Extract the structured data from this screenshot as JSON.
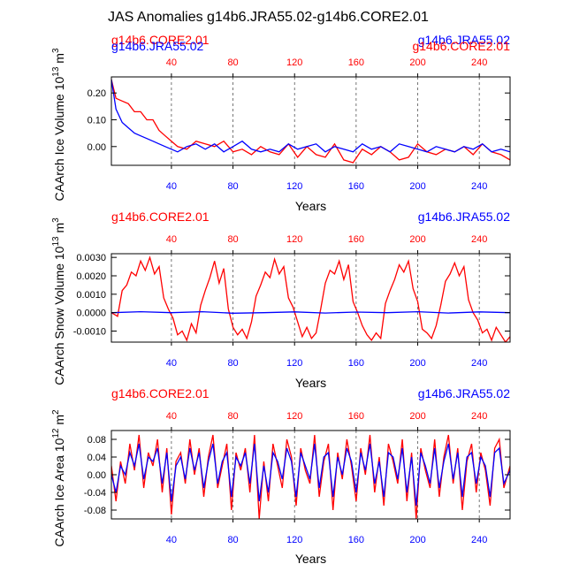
{
  "title": "JAS Anomalies g14b6.JRA55.02-g14b6.CORE2.01",
  "colors": {
    "core": "#ff0000",
    "jra": "#0000ff",
    "axis": "#000000",
    "grid": "#555555",
    "bg": "#ffffff"
  },
  "chart_data": [
    {
      "id": "ice-volume",
      "type": "line",
      "xlabel": "Years",
      "ylabel": "CAArch Ice Volume 10^13 m^3",
      "ylabel_parts": {
        "base": "CAArch Ice Volume 10",
        "exp1": "13",
        "mid": " m",
        "exp2": "3"
      },
      "left_label": "g14b6.CORE2.01",
      "right_label": "g14b6.JRA55.02",
      "overlap_left_label": "g14b6.JRA55.02",
      "overlap_right_label": "g14b6.CORE2.01",
      "xlim": [
        1,
        260
      ],
      "ylim": [
        -0.07,
        0.26
      ],
      "yticks": [
        0.2,
        0.1,
        0.0
      ],
      "ytick_labels": [
        "0.20",
        "0.10",
        "0.00"
      ],
      "xticks": [
        40,
        80,
        120,
        160,
        200,
        240
      ],
      "xtick_labels": [
        "40",
        "80",
        "120",
        "160",
        "200",
        "240"
      ],
      "grid": "dashed vertical at x ticks",
      "series": [
        {
          "name": "g14b6.CORE2.01",
          "color": "#ff0000",
          "x": [
            1,
            4,
            8,
            12,
            16,
            20,
            24,
            28,
            32,
            36,
            40,
            44,
            50,
            56,
            62,
            68,
            74,
            80,
            86,
            92,
            98,
            104,
            110,
            116,
            122,
            128,
            134,
            140,
            146,
            152,
            158,
            164,
            170,
            176,
            182,
            188,
            194,
            200,
            206,
            212,
            218,
            224,
            230,
            236,
            242,
            248,
            254,
            260
          ],
          "y": [
            0.25,
            0.18,
            0.17,
            0.16,
            0.13,
            0.13,
            0.1,
            0.1,
            0.06,
            0.04,
            0.02,
            0.0,
            -0.01,
            0.02,
            0.01,
            0.0,
            0.02,
            -0.02,
            -0.01,
            -0.03,
            0.0,
            -0.02,
            -0.03,
            0.01,
            -0.04,
            0.0,
            -0.03,
            -0.04,
            0.01,
            -0.05,
            -0.06,
            -0.01,
            -0.03,
            0.0,
            -0.02,
            -0.05,
            -0.04,
            0.01,
            -0.02,
            -0.03,
            -0.01,
            -0.02,
            0.0,
            -0.03,
            0.01,
            -0.02,
            -0.03,
            -0.05
          ]
        },
        {
          "name": "g14b6.JRA55.02",
          "color": "#0000ff",
          "x": [
            1,
            4,
            8,
            12,
            16,
            20,
            24,
            28,
            32,
            36,
            40,
            44,
            50,
            56,
            62,
            68,
            74,
            80,
            86,
            92,
            98,
            104,
            110,
            116,
            122,
            128,
            134,
            140,
            146,
            152,
            158,
            164,
            170,
            176,
            182,
            188,
            194,
            200,
            206,
            212,
            218,
            224,
            230,
            236,
            242,
            248,
            254,
            260
          ],
          "y": [
            0.25,
            0.14,
            0.09,
            0.07,
            0.05,
            0.04,
            0.03,
            0.02,
            0.01,
            0.0,
            -0.01,
            -0.02,
            0.0,
            0.01,
            -0.01,
            0.01,
            -0.02,
            0.0,
            0.02,
            -0.01,
            -0.02,
            -0.01,
            -0.02,
            0.01,
            -0.01,
            0.0,
            0.01,
            -0.02,
            0.0,
            -0.01,
            -0.02,
            0.01,
            -0.01,
            0.0,
            -0.02,
            0.01,
            0.0,
            -0.01,
            -0.02,
            0.0,
            -0.01,
            -0.02,
            0.0,
            -0.01,
            0.01,
            -0.02,
            -0.01,
            -0.02
          ]
        }
      ]
    },
    {
      "id": "snow-volume",
      "type": "line",
      "xlabel": "Years",
      "ylabel": "CAArch Snow Volume 10^13 m^3",
      "ylabel_parts": {
        "base": "CAArch Snow Volume 10",
        "exp1": "13",
        "mid": " m",
        "exp2": "3"
      },
      "left_label": "g14b6.CORE2.01",
      "right_label": "g14b6.JRA55.02",
      "xlim": [
        1,
        260
      ],
      "ylim": [
        -0.0016,
        0.0032
      ],
      "yticks": [
        0.003,
        0.002,
        0.001,
        0.0,
        -0.001
      ],
      "ytick_labels": [
        "0.0030",
        "0.0020",
        "0.0010",
        "0.0000",
        "-0.0010"
      ],
      "xticks": [
        40,
        80,
        120,
        160,
        200,
        240
      ],
      "xtick_labels": [
        "40",
        "80",
        "120",
        "160",
        "200",
        "240"
      ],
      "grid": "dashed vertical at x ticks",
      "series": [
        {
          "name": "g14b6.CORE2.01",
          "color": "#ff0000",
          "x": [
            1,
            5,
            8,
            11,
            14,
            17,
            20,
            23,
            26,
            29,
            32,
            35,
            38,
            41,
            44,
            47,
            50,
            53,
            56,
            59,
            62,
            65,
            68,
            71,
            74,
            77,
            80,
            83,
            86,
            89,
            92,
            95,
            98,
            101,
            104,
            107,
            110,
            113,
            116,
            119,
            122,
            125,
            128,
            131,
            134,
            137,
            140,
            143,
            146,
            149,
            152,
            155,
            158,
            161,
            164,
            167,
            170,
            173,
            176,
            179,
            182,
            185,
            188,
            191,
            194,
            197,
            200,
            203,
            206,
            209,
            212,
            215,
            218,
            221,
            224,
            227,
            230,
            233,
            236,
            239,
            242,
            245,
            248,
            251,
            254,
            257,
            260
          ],
          "y": [
            0.0,
            -0.0002,
            0.0012,
            0.0015,
            0.0022,
            0.002,
            0.0028,
            0.0023,
            0.003,
            0.0021,
            0.0025,
            0.0008,
            0.0002,
            -0.0003,
            -0.0012,
            -0.001,
            -0.0015,
            -0.0006,
            -0.0011,
            0.0004,
            0.0012,
            0.0019,
            0.0028,
            0.0016,
            0.0024,
            0.0002,
            -0.0008,
            -0.0012,
            -0.0009,
            -0.0014,
            -0.0005,
            0.0009,
            0.0015,
            0.0022,
            0.0019,
            0.0029,
            0.0021,
            0.0025,
            0.0008,
            0.0003,
            -0.0005,
            -0.0013,
            -0.0008,
            -0.0014,
            -0.0011,
            0.0002,
            0.0016,
            0.0023,
            0.0021,
            0.0028,
            0.0018,
            0.0026,
            0.0006,
            0.0,
            -0.0007,
            -0.0012,
            -0.0015,
            -0.0011,
            -0.0014,
            0.0005,
            0.0012,
            0.0018,
            0.0026,
            0.0022,
            0.0028,
            0.0013,
            0.0006,
            -0.0009,
            -0.0011,
            -0.0014,
            -0.0007,
            0.0004,
            0.0017,
            0.0021,
            0.0027,
            0.002,
            0.0025,
            0.0007,
            0.0,
            -0.0004,
            -0.0011,
            -0.0009,
            -0.0015,
            -0.0008,
            -0.0012,
            -0.0016,
            -0.0013
          ]
        },
        {
          "name": "g14b6.JRA55.02",
          "color": "#0000ff",
          "x": [
            1,
            20,
            40,
            60,
            80,
            100,
            120,
            140,
            160,
            180,
            200,
            220,
            240,
            260
          ],
          "y": [
            0.0,
            5e-05,
            0.0,
            5e-05,
            -3e-05,
            0.0,
            4e-05,
            -2e-05,
            3e-05,
            0.0,
            5e-05,
            -2e-05,
            4e-05,
            0.0
          ]
        }
      ]
    },
    {
      "id": "ice-area",
      "type": "line",
      "xlabel": "Years",
      "ylabel": "CAArch Ice Area 10^12 m^2",
      "ylabel_parts": {
        "base": "CAArch Ice Area 10",
        "exp1": "12",
        "mid": " m",
        "exp2": "2"
      },
      "left_label": "g14b6.CORE2.01",
      "right_label": "g14b6.JRA55.02",
      "xlim": [
        1,
        260
      ],
      "ylim": [
        -0.1,
        0.1
      ],
      "yticks": [
        0.08,
        0.04,
        0.0,
        -0.04,
        -0.08
      ],
      "ytick_labels": [
        "0.08",
        "0.04",
        "0.00",
        "-0.04",
        "-0.08"
      ],
      "xticks": [
        40,
        80,
        120,
        160,
        200,
        240
      ],
      "xtick_labels": [
        "40",
        "80",
        "120",
        "160",
        "200",
        "240"
      ],
      "grid": "dashed vertical at x ticks",
      "series": [
        {
          "name": "g14b6.CORE2.01",
          "color": "#ff0000",
          "x": [
            1,
            4,
            7,
            10,
            13,
            16,
            19,
            22,
            25,
            28,
            31,
            34,
            37,
            40,
            43,
            46,
            49,
            52,
            55,
            58,
            61,
            64,
            67,
            70,
            73,
            76,
            79,
            82,
            85,
            88,
            91,
            94,
            97,
            100,
            103,
            106,
            109,
            112,
            115,
            118,
            121,
            124,
            127,
            130,
            133,
            136,
            139,
            142,
            145,
            148,
            151,
            154,
            157,
            160,
            163,
            166,
            169,
            172,
            175,
            178,
            181,
            184,
            187,
            190,
            193,
            196,
            199,
            202,
            205,
            208,
            211,
            214,
            217,
            220,
            223,
            226,
            229,
            232,
            235,
            238,
            241,
            244,
            247,
            250,
            253,
            256,
            260
          ],
          "y": [
            0.02,
            -0.06,
            0.03,
            -0.02,
            0.07,
            0.01,
            0.09,
            -0.03,
            0.05,
            0.02,
            0.08,
            -0.04,
            0.06,
            -0.09,
            0.03,
            0.05,
            -0.02,
            0.08,
            0.0,
            0.06,
            -0.05,
            0.04,
            0.09,
            -0.03,
            0.02,
            0.07,
            -0.08,
            0.05,
            0.01,
            0.06,
            -0.04,
            0.09,
            -0.1,
            0.03,
            -0.06,
            0.07,
            0.02,
            -0.03,
            0.08,
            0.04,
            -0.07,
            0.06,
            0.01,
            -0.02,
            0.09,
            -0.05,
            0.03,
            0.07,
            -0.08,
            0.05,
            -0.01,
            0.08,
            0.02,
            -0.06,
            0.06,
            0.0,
            0.09,
            -0.04,
            0.04,
            -0.07,
            0.07,
            0.03,
            -0.02,
            0.08,
            -0.06,
            0.05,
            -0.1,
            0.06,
            0.01,
            -0.03,
            0.08,
            -0.05,
            0.04,
            0.09,
            -0.02,
            0.06,
            -0.08,
            0.03,
            0.07,
            -0.04,
            0.05,
            0.01,
            -0.07,
            0.06,
            0.08,
            -0.03,
            0.02
          ]
        },
        {
          "name": "g14b6.JRA55.02",
          "color": "#0000ff",
          "x": [
            1,
            4,
            7,
            10,
            13,
            16,
            19,
            22,
            25,
            28,
            31,
            34,
            37,
            40,
            43,
            46,
            49,
            52,
            55,
            58,
            61,
            64,
            67,
            70,
            73,
            76,
            79,
            82,
            85,
            88,
            91,
            94,
            97,
            100,
            103,
            106,
            109,
            112,
            115,
            118,
            121,
            124,
            127,
            130,
            133,
            136,
            139,
            142,
            145,
            148,
            151,
            154,
            157,
            160,
            163,
            166,
            169,
            172,
            175,
            178,
            181,
            184,
            187,
            190,
            193,
            196,
            199,
            202,
            205,
            208,
            211,
            214,
            217,
            220,
            223,
            226,
            229,
            232,
            235,
            238,
            241,
            244,
            247,
            250,
            253,
            256,
            260
          ],
          "y": [
            0.0,
            -0.04,
            0.02,
            0.0,
            0.05,
            0.02,
            0.07,
            -0.01,
            0.04,
            0.03,
            0.06,
            -0.02,
            0.05,
            -0.06,
            0.02,
            0.04,
            -0.01,
            0.06,
            0.01,
            0.05,
            -0.03,
            0.03,
            0.07,
            -0.02,
            0.03,
            0.05,
            -0.05,
            0.04,
            0.02,
            0.05,
            -0.02,
            0.07,
            -0.06,
            0.02,
            -0.04,
            0.05,
            0.03,
            -0.01,
            0.06,
            0.03,
            -0.05,
            0.05,
            0.02,
            -0.01,
            0.07,
            -0.03,
            0.04,
            0.05,
            -0.05,
            0.04,
            0.0,
            0.06,
            0.03,
            -0.04,
            0.05,
            0.01,
            0.07,
            -0.02,
            0.03,
            -0.05,
            0.05,
            0.04,
            -0.01,
            0.06,
            -0.04,
            0.04,
            -0.07,
            0.05,
            0.02,
            -0.02,
            0.06,
            -0.03,
            0.03,
            0.07,
            -0.01,
            0.05,
            -0.05,
            0.04,
            0.05,
            -0.02,
            0.04,
            0.02,
            -0.05,
            0.05,
            0.06,
            -0.02,
            0.01
          ]
        }
      ]
    }
  ]
}
